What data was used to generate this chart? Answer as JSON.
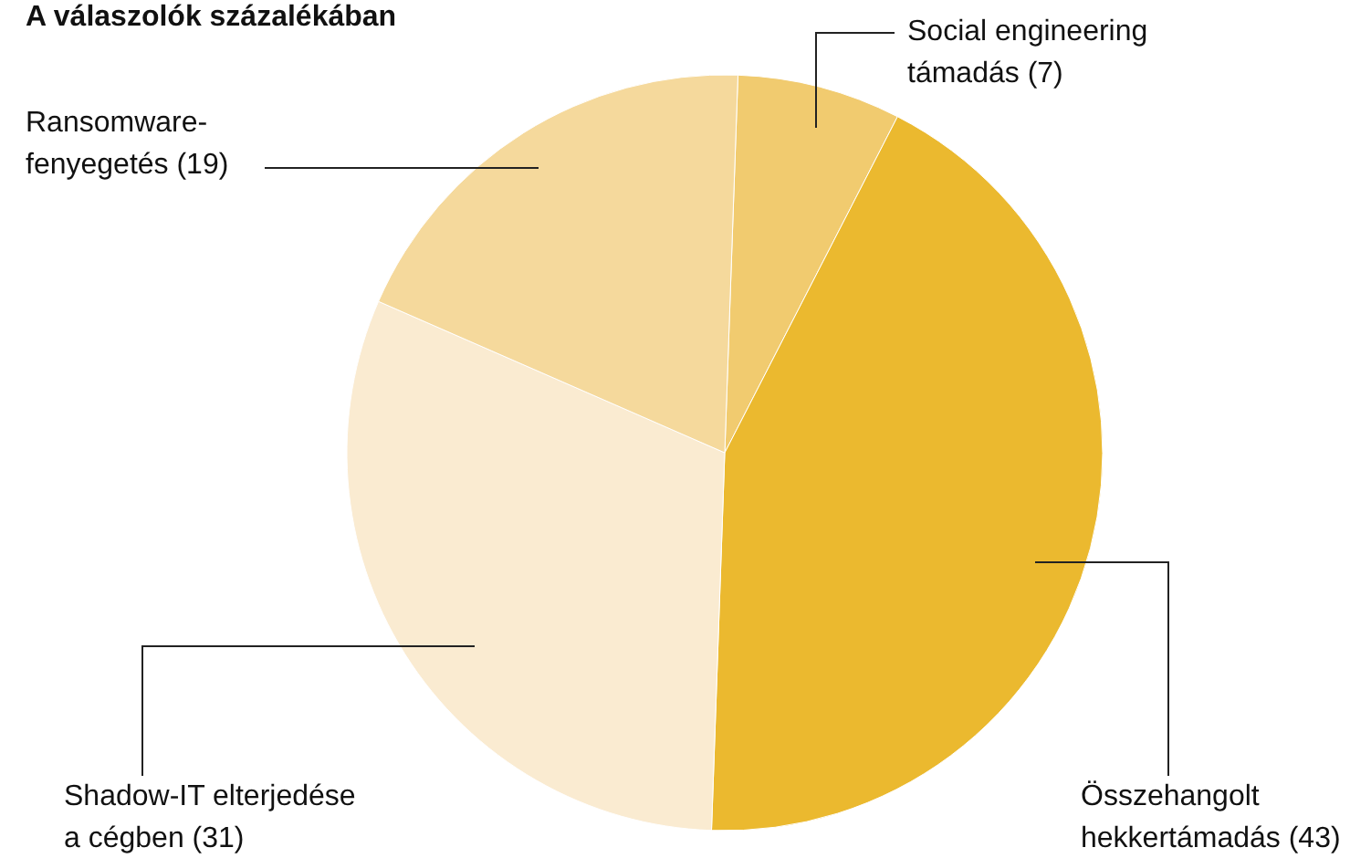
{
  "chart_data": {
    "type": "pie",
    "title": "A válaszolók százalékában",
    "categories": [
      "Social engineering\ntámadás (7)",
      "Összehangolt\nhekkertámadás (43)",
      "Shadow-IT elterjedése\na cégben (31)",
      "Ransomware-\nfenyegetés (19)"
    ],
    "values": [
      7,
      43,
      31,
      19
    ],
    "colors": [
      "#f1cb6f",
      "#ebb92f",
      "#faebd1",
      "#f5d99c"
    ]
  }
}
